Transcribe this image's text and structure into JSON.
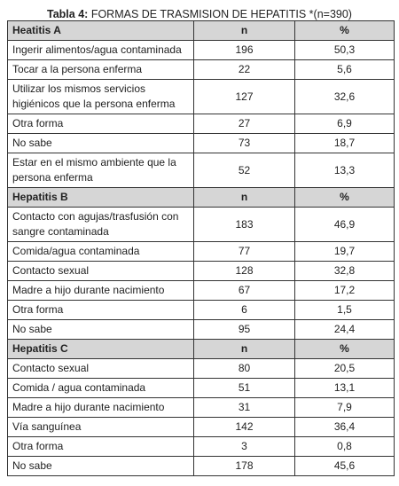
{
  "title_label": "Tabla 4:",
  "title_text": "FORMAS DE TRASMISION DE HEPATITIS *(n=390)",
  "sections": [
    {
      "header": [
        "Heatitis A",
        "n",
        "%"
      ],
      "rows": [
        [
          "Ingerir alimentos/agua contaminada",
          196,
          "50,3"
        ],
        [
          "Tocar a la persona enferma",
          22,
          "5,6"
        ],
        [
          "Utilizar los mismos servicios higiénicos que la persona enferma",
          127,
          "32,6"
        ],
        [
          "Otra forma",
          27,
          "6,9"
        ],
        [
          "No sabe",
          73,
          "18,7"
        ],
        [
          "Estar en el mismo ambiente que la persona enferma",
          52,
          "13,3"
        ]
      ]
    },
    {
      "header": [
        "Hepatitis B",
        "n",
        "%"
      ],
      "rows": [
        [
          "Contacto con agujas/trasfusión con sangre contaminada",
          183,
          "46,9"
        ],
        [
          "Comida/agua contaminada",
          77,
          "19,7"
        ],
        [
          "Contacto sexual",
          128,
          "32,8"
        ],
        [
          "Madre a hijo durante nacimiento",
          67,
          "17,2"
        ],
        [
          "Otra forma",
          6,
          "1,5"
        ],
        [
          "No sabe",
          95,
          "24,4"
        ]
      ]
    },
    {
      "header": [
        "Hepatitis C",
        "n",
        "%"
      ],
      "rows": [
        [
          "Contacto sexual",
          80,
          "20,5"
        ],
        [
          "Comida / agua contaminada",
          51,
          "13,1"
        ],
        [
          "Madre a hijo durante nacimiento",
          31,
          "7,9"
        ],
        [
          "Vía sanguínea",
          142,
          "36,4"
        ],
        [
          "Otra forma",
          3,
          "0,8"
        ],
        [
          "No sabe",
          178,
          "45,6"
        ]
      ]
    }
  ]
}
